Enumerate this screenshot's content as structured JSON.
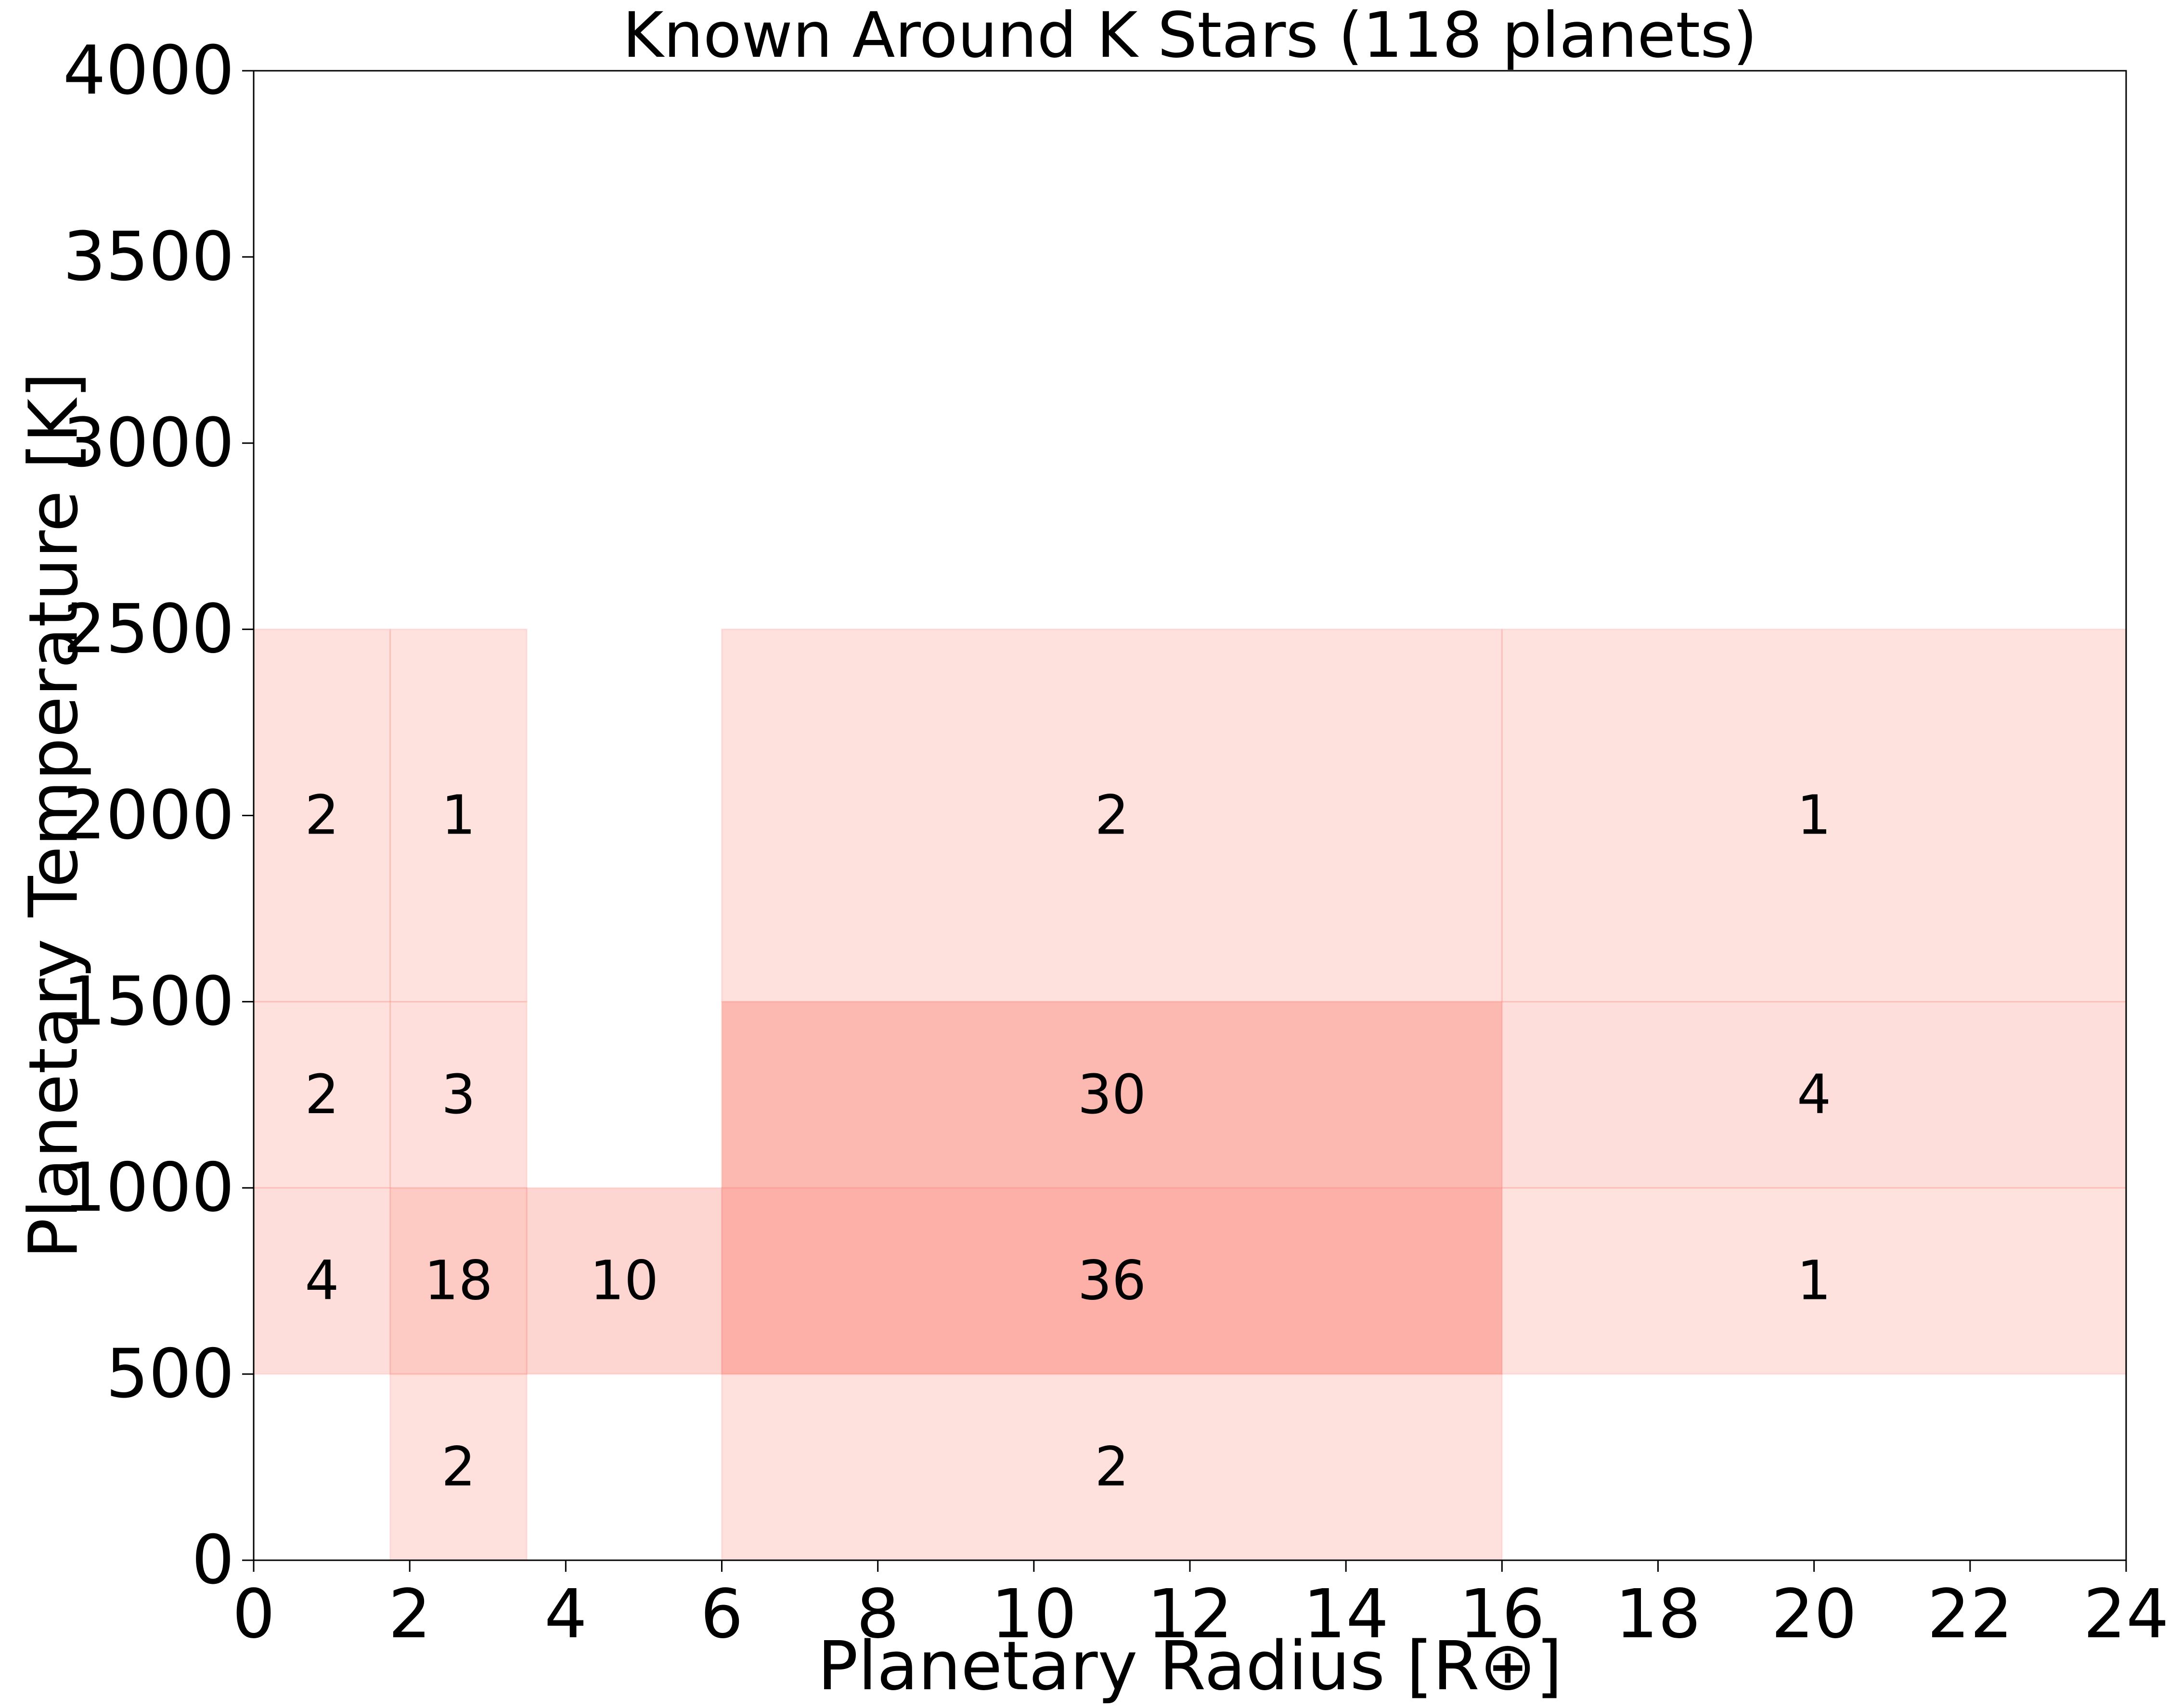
{
  "chart_data": {
    "type": "heatmap",
    "title": "Known Around K Stars (118 planets)",
    "xlabel": "Planetary Radius [R⊕]",
    "ylabel": "Planetary Temperature [K]",
    "xlim": [
      0,
      24
    ],
    "ylim": [
      0,
      4000
    ],
    "xticks": [
      0,
      2,
      4,
      6,
      8,
      10,
      12,
      14,
      16,
      18,
      20,
      22,
      24
    ],
    "yticks": [
      0,
      500,
      1000,
      1500,
      2000,
      2500,
      3000,
      3500,
      4000
    ],
    "grid": false,
    "legend": "none",
    "cell_color": "#fa8072",
    "cells": [
      {
        "x0": 0,
        "x1": 1.75,
        "y0": 1500,
        "y1": 2500,
        "count": 2
      },
      {
        "x0": 1.75,
        "x1": 3.5,
        "y0": 1500,
        "y1": 2500,
        "count": 1
      },
      {
        "x0": 6,
        "x1": 16,
        "y0": 1500,
        "y1": 2500,
        "count": 2
      },
      {
        "x0": 16,
        "x1": 24,
        "y0": 1500,
        "y1": 2500,
        "count": 1
      },
      {
        "x0": 0,
        "x1": 1.75,
        "y0": 1000,
        "y1": 1500,
        "count": 2
      },
      {
        "x0": 1.75,
        "x1": 3.5,
        "y0": 1000,
        "y1": 1500,
        "count": 3
      },
      {
        "x0": 6,
        "x1": 16,
        "y0": 1000,
        "y1": 1500,
        "count": 30
      },
      {
        "x0": 16,
        "x1": 24,
        "y0": 1000,
        "y1": 1500,
        "count": 4
      },
      {
        "x0": 0,
        "x1": 1.75,
        "y0": 500,
        "y1": 1000,
        "count": 4
      },
      {
        "x0": 1.75,
        "x1": 3.5,
        "y0": 500,
        "y1": 1000,
        "count": 18
      },
      {
        "x0": 3.5,
        "x1": 6,
        "y0": 500,
        "y1": 1000,
        "count": 10
      },
      {
        "x0": 6,
        "x1": 16,
        "y0": 500,
        "y1": 1000,
        "count": 36
      },
      {
        "x0": 16,
        "x1": 24,
        "y0": 500,
        "y1": 1000,
        "count": 1
      },
      {
        "x0": 1.75,
        "x1": 3.5,
        "y0": 0,
        "y1": 500,
        "count": 2
      },
      {
        "x0": 6,
        "x1": 16,
        "y0": 0,
        "y1": 500,
        "count": 2
      }
    ]
  }
}
